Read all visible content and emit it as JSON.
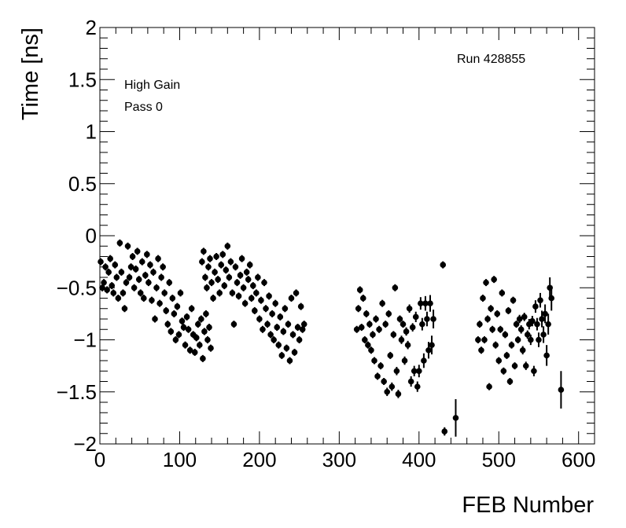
{
  "chart_data": {
    "type": "scatter",
    "title": "",
    "xlabel": "FEB Number",
    "ylabel": "Time [ns]",
    "xlim": [
      0,
      620
    ],
    "ylim": [
      -2,
      2
    ],
    "xticks": [
      "0",
      "100",
      "200",
      "300",
      "400",
      "500",
      "600"
    ],
    "yticks": [
      "2",
      "1.5",
      "1",
      "0.5",
      "0",
      "−0.5",
      "−1",
      "−1.5",
      "−2"
    ],
    "grid": false,
    "error_bars": true,
    "annotations": {
      "run": "Run 428855",
      "gain": "High Gain",
      "pass": "Pass 0"
    },
    "points": [
      [
        1,
        -0.25,
        0.03
      ],
      [
        3,
        -0.5,
        0.03
      ],
      [
        5,
        -0.45,
        0.03
      ],
      [
        7,
        -0.3,
        0.03
      ],
      [
        9,
        -0.52,
        0.03
      ],
      [
        11,
        -0.35,
        0.03
      ],
      [
        13,
        -0.22,
        0.03
      ],
      [
        15,
        -0.48,
        0.03
      ],
      [
        17,
        -0.55,
        0.03
      ],
      [
        19,
        -0.28,
        0.03
      ],
      [
        21,
        -0.4,
        0.03
      ],
      [
        23,
        -0.6,
        0.03
      ],
      [
        25,
        -0.07,
        0.03
      ],
      [
        27,
        -0.35,
        0.03
      ],
      [
        29,
        -0.55,
        0.03
      ],
      [
        31,
        -0.7,
        0.03
      ],
      [
        33,
        -0.45,
        0.03
      ],
      [
        35,
        -0.1,
        0.03
      ],
      [
        37,
        -0.4,
        0.03
      ],
      [
        39,
        -0.3,
        0.03
      ],
      [
        41,
        -0.2,
        0.03
      ],
      [
        43,
        -0.5,
        0.03
      ],
      [
        45,
        -0.32,
        0.03
      ],
      [
        47,
        -0.15,
        0.03
      ],
      [
        49,
        -0.42,
        0.03
      ],
      [
        51,
        -0.55,
        0.03
      ],
      [
        53,
        -0.25,
        0.03
      ],
      [
        55,
        -0.6,
        0.03
      ],
      [
        57,
        -0.38,
        0.03
      ],
      [
        59,
        -0.18,
        0.03
      ],
      [
        61,
        -0.45,
        0.03
      ],
      [
        63,
        -0.28,
        0.03
      ],
      [
        65,
        -0.62,
        0.03
      ],
      [
        67,
        -0.35,
        0.03
      ],
      [
        69,
        -0.8,
        0.03
      ],
      [
        71,
        -0.5,
        0.03
      ],
      [
        73,
        -0.22,
        0.03
      ],
      [
        75,
        -0.65,
        0.03
      ],
      [
        77,
        -0.4,
        0.03
      ],
      [
        79,
        -0.3,
        0.03
      ],
      [
        81,
        -0.55,
        0.03
      ],
      [
        83,
        -0.72,
        0.03
      ],
      [
        85,
        -0.85,
        0.03
      ],
      [
        87,
        -0.45,
        0.03
      ],
      [
        89,
        -0.92,
        0.03
      ],
      [
        91,
        -0.6,
        0.03
      ],
      [
        93,
        -0.75,
        0.03
      ],
      [
        95,
        -1.0,
        0.03
      ],
      [
        97,
        -0.68,
        0.03
      ],
      [
        99,
        -0.95,
        0.03
      ],
      [
        101,
        -0.55,
        0.03
      ],
      [
        103,
        -0.82,
        0.03
      ],
      [
        105,
        -0.88,
        0.03
      ],
      [
        107,
        -1.05,
        0.03
      ],
      [
        109,
        -0.78,
        0.03
      ],
      [
        111,
        -0.9,
        0.03
      ],
      [
        113,
        -1.1,
        0.03
      ],
      [
        115,
        -0.7,
        0.03
      ],
      [
        117,
        -0.95,
        0.03
      ],
      [
        119,
        -1.12,
        0.03
      ],
      [
        121,
        -0.98,
        0.03
      ],
      [
        123,
        -0.85,
        0.03
      ],
      [
        125,
        -1.05,
        0.03
      ],
      [
        127,
        -0.8,
        0.03
      ],
      [
        129,
        -1.18,
        0.03
      ],
      [
        131,
        -0.92,
        0.03
      ],
      [
        133,
        -0.75,
        0.03
      ],
      [
        135,
        -1.0,
        0.03
      ],
      [
        137,
        -0.88,
        0.03
      ],
      [
        139,
        -1.08,
        0.03
      ],
      [
        128,
        -0.25,
        0.03
      ],
      [
        130,
        -0.15,
        0.03
      ],
      [
        132,
        -0.4,
        0.03
      ],
      [
        134,
        -0.5,
        0.03
      ],
      [
        136,
        -0.3,
        0.03
      ],
      [
        138,
        -0.22,
        0.03
      ],
      [
        140,
        -0.45,
        0.03
      ],
      [
        142,
        -0.6,
        0.03
      ],
      [
        144,
        -0.35,
        0.03
      ],
      [
        146,
        -0.2,
        0.03
      ],
      [
        148,
        -0.42,
        0.03
      ],
      [
        150,
        -0.55,
        0.03
      ],
      [
        152,
        -0.28,
        0.03
      ],
      [
        154,
        -0.18,
        0.03
      ],
      [
        156,
        -0.48,
        0.03
      ],
      [
        158,
        -0.33,
        0.03
      ],
      [
        160,
        -0.1,
        0.03
      ],
      [
        162,
        -0.4,
        0.03
      ],
      [
        164,
        -0.25,
        0.03
      ],
      [
        166,
        -0.55,
        0.03
      ],
      [
        168,
        -0.85,
        0.03
      ],
      [
        170,
        -0.3,
        0.03
      ],
      [
        172,
        -0.45,
        0.03
      ],
      [
        174,
        -0.58,
        0.03
      ],
      [
        176,
        -0.38,
        0.03
      ],
      [
        178,
        -0.22,
        0.03
      ],
      [
        180,
        -0.5,
        0.03
      ],
      [
        182,
        -0.65,
        0.03
      ],
      [
        184,
        -0.35,
        0.03
      ],
      [
        186,
        -0.42,
        0.03
      ],
      [
        188,
        -0.28,
        0.03
      ],
      [
        190,
        -0.6,
        0.03
      ],
      [
        192,
        -0.48,
        0.03
      ],
      [
        194,
        -0.72,
        0.03
      ],
      [
        196,
        -0.55,
        0.03
      ],
      [
        198,
        -0.4,
        0.03
      ],
      [
        200,
        -0.8,
        0.03
      ],
      [
        202,
        -0.62,
        0.03
      ],
      [
        204,
        -0.9,
        0.03
      ],
      [
        206,
        -0.45,
        0.03
      ],
      [
        208,
        -0.7,
        0.03
      ],
      [
        210,
        -0.85,
        0.03
      ],
      [
        212,
        -0.58,
        0.03
      ],
      [
        214,
        -0.95,
        0.03
      ],
      [
        216,
        -0.75,
        0.03
      ],
      [
        218,
        -1.0,
        0.03
      ],
      [
        220,
        -0.65,
        0.03
      ],
      [
        222,
        -0.88,
        0.03
      ],
      [
        224,
        -1.05,
        0.03
      ],
      [
        226,
        -0.78,
        0.03
      ],
      [
        228,
        -1.15,
        0.03
      ],
      [
        230,
        -0.92,
        0.03
      ],
      [
        232,
        -0.7,
        0.03
      ],
      [
        234,
        -1.08,
        0.03
      ],
      [
        236,
        -0.85,
        0.03
      ],
      [
        238,
        -1.2,
        0.03
      ],
      [
        240,
        -0.6,
        0.03
      ],
      [
        242,
        -0.95,
        0.03
      ],
      [
        244,
        -1.12,
        0.03
      ],
      [
        246,
        -0.55,
        0.03
      ],
      [
        248,
        -0.88,
        0.03
      ],
      [
        250,
        -1.0,
        0.03
      ],
      [
        252,
        -0.68,
        0.03
      ],
      [
        254,
        -0.9,
        0.03
      ],
      [
        256,
        -0.85,
        0.03
      ],
      [
        322,
        -0.9,
        0.03
      ],
      [
        324,
        -0.7,
        0.03
      ],
      [
        326,
        -0.52,
        0.03
      ],
      [
        328,
        -0.88,
        0.03
      ],
      [
        330,
        -0.6,
        0.03
      ],
      [
        332,
        -1.0,
        0.03
      ],
      [
        334,
        -0.75,
        0.03
      ],
      [
        336,
        -1.05,
        0.03
      ],
      [
        338,
        -0.85,
        0.03
      ],
      [
        340,
        -1.1,
        0.03
      ],
      [
        342,
        -0.95,
        0.03
      ],
      [
        344,
        -1.2,
        0.03
      ],
      [
        346,
        -0.8,
        0.03
      ],
      [
        348,
        -1.35,
        0.03
      ],
      [
        350,
        -0.9,
        0.03
      ],
      [
        352,
        -1.25,
        0.03
      ],
      [
        354,
        -0.65,
        0.03
      ],
      [
        356,
        -1.4,
        0.03
      ],
      [
        358,
        -0.85,
        0.03
      ],
      [
        360,
        -1.5,
        0.04
      ],
      [
        362,
        -0.75,
        0.03
      ],
      [
        364,
        -1.15,
        0.03
      ],
      [
        366,
        -1.45,
        0.04
      ],
      [
        368,
        -0.95,
        0.03
      ],
      [
        370,
        -0.5,
        0.03
      ],
      [
        372,
        -1.3,
        0.04
      ],
      [
        374,
        -1.52,
        0.04
      ],
      [
        376,
        -0.8,
        0.03
      ],
      [
        378,
        -1.0,
        0.04
      ],
      [
        380,
        -0.85,
        0.03
      ],
      [
        382,
        -1.2,
        0.04
      ],
      [
        384,
        -0.92,
        0.04
      ],
      [
        386,
        -1.05,
        0.04
      ],
      [
        388,
        -0.7,
        0.04
      ],
      [
        390,
        -1.4,
        0.05
      ],
      [
        392,
        -0.88,
        0.04
      ],
      [
        394,
        -1.3,
        0.05
      ],
      [
        396,
        -0.78,
        0.05
      ],
      [
        398,
        -1.45,
        0.05
      ],
      [
        400,
        -1.3,
        0.06
      ],
      [
        402,
        -0.65,
        0.06
      ],
      [
        404,
        -0.85,
        0.06
      ],
      [
        406,
        -1.2,
        0.07
      ],
      [
        408,
        -0.65,
        0.07
      ],
      [
        410,
        -0.8,
        0.07
      ],
      [
        412,
        -1.1,
        0.08
      ],
      [
        414,
        -0.65,
        0.08
      ],
      [
        416,
        -1.05,
        0.09
      ],
      [
        418,
        -0.8,
        0.09
      ],
      [
        430,
        -0.28,
        0.03
      ],
      [
        432,
        -1.88,
        0.04
      ],
      [
        446,
        -1.75,
        0.18
      ],
      [
        474,
        -1.0,
        0.03
      ],
      [
        476,
        -0.85,
        0.03
      ],
      [
        478,
        -1.1,
        0.03
      ],
      [
        480,
        -0.6,
        0.03
      ],
      [
        482,
        -1.0,
        0.03
      ],
      [
        484,
        -0.45,
        0.03
      ],
      [
        486,
        -0.8,
        0.03
      ],
      [
        488,
        -1.45,
        0.03
      ],
      [
        490,
        -0.7,
        0.03
      ],
      [
        492,
        -0.9,
        0.03
      ],
      [
        494,
        -0.42,
        0.03
      ],
      [
        496,
        -1.05,
        0.03
      ],
      [
        498,
        -0.75,
        0.03
      ],
      [
        500,
        -1.2,
        0.03
      ],
      [
        502,
        -0.9,
        0.03
      ],
      [
        504,
        -0.55,
        0.03
      ],
      [
        506,
        -1.3,
        0.03
      ],
      [
        508,
        -0.95,
        0.03
      ],
      [
        510,
        -1.15,
        0.03
      ],
      [
        512,
        -0.72,
        0.03
      ],
      [
        514,
        -1.4,
        0.03
      ],
      [
        516,
        -1.05,
        0.03
      ],
      [
        518,
        -0.62,
        0.03
      ],
      [
        520,
        -1.25,
        0.03
      ],
      [
        522,
        -0.85,
        0.03
      ],
      [
        524,
        -1.0,
        0.03
      ],
      [
        526,
        -0.8,
        0.04
      ],
      [
        528,
        -0.9,
        0.04
      ],
      [
        530,
        -1.1,
        0.04
      ],
      [
        532,
        -0.78,
        0.04
      ],
      [
        534,
        -1.25,
        0.04
      ],
      [
        536,
        -0.95,
        0.04
      ],
      [
        538,
        -0.85,
        0.05
      ],
      [
        540,
        -1.0,
        0.05
      ],
      [
        542,
        -0.82,
        0.05
      ],
      [
        544,
        -1.3,
        0.05
      ],
      [
        546,
        -0.68,
        0.06
      ],
      [
        548,
        -0.85,
        0.06
      ],
      [
        550,
        -1.0,
        0.07
      ],
      [
        552,
        -0.62,
        0.07
      ],
      [
        554,
        -0.8,
        0.08
      ],
      [
        556,
        -0.95,
        0.08
      ],
      [
        558,
        -0.75,
        0.09
      ],
      [
        560,
        -1.15,
        0.1
      ],
      [
        562,
        -0.85,
        0.1
      ],
      [
        564,
        -0.5,
        0.1
      ],
      [
        566,
        -0.6,
        0.12
      ],
      [
        578,
        -1.48,
        0.18
      ]
    ]
  }
}
